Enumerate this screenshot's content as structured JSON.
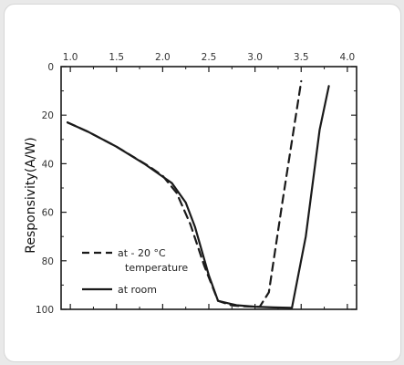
{
  "chart_data": {
    "type": "line",
    "title": "",
    "xlabel": "",
    "ylabel": "Responsivity(A/W)",
    "xlim": [
      0.9,
      4.1
    ],
    "ylim": [
      0,
      100
    ],
    "x_ticks": [
      1.0,
      1.5,
      2.0,
      2.5,
      3.0,
      3.5,
      4.0
    ],
    "x_tick_labels": [
      "1.0",
      "1.5",
      "2.0",
      "2.5",
      "3.0",
      "3.5",
      "4.0"
    ],
    "y_ticks": [
      0,
      20,
      40,
      60,
      80,
      100
    ],
    "y_tick_labels": [
      "0",
      "20",
      "40",
      "60",
      "80",
      "100"
    ],
    "x_axis_position": "top",
    "grid": false,
    "legend": {
      "placement": "bottom-left",
      "entries": [
        {
          "line_style": "dashed",
          "label_lines": [
            "at - 20 °C"
          ]
        },
        {
          "line_style": "solid",
          "label_lines": [
            "temperature",
            "at room"
          ]
        }
      ]
    },
    "series": [
      {
        "style": "dashed",
        "color": "#1a1a1a",
        "x": [
          0.97,
          1.2,
          1.5,
          1.85,
          2.0,
          2.15,
          2.3,
          2.45,
          2.6,
          2.75,
          2.9,
          3.05,
          3.15,
          3.3,
          3.5
        ],
        "y": [
          23,
          27,
          33,
          41,
          45,
          52,
          65,
          82,
          96.5,
          98.4,
          98.8,
          99,
          93,
          55,
          6
        ]
      },
      {
        "style": "solid",
        "color": "#1a1a1a",
        "x": [
          0.97,
          1.2,
          1.5,
          1.8,
          1.95,
          2.1,
          2.25,
          2.35,
          2.5,
          2.6,
          2.8,
          3.0,
          3.2,
          3.4,
          3.55,
          3.7,
          3.8
        ],
        "y": [
          23,
          27,
          33,
          40,
          44,
          48,
          56,
          66,
          86,
          96.5,
          98.3,
          98.9,
          99.2,
          99.4,
          70,
          26,
          8
        ]
      }
    ]
  }
}
